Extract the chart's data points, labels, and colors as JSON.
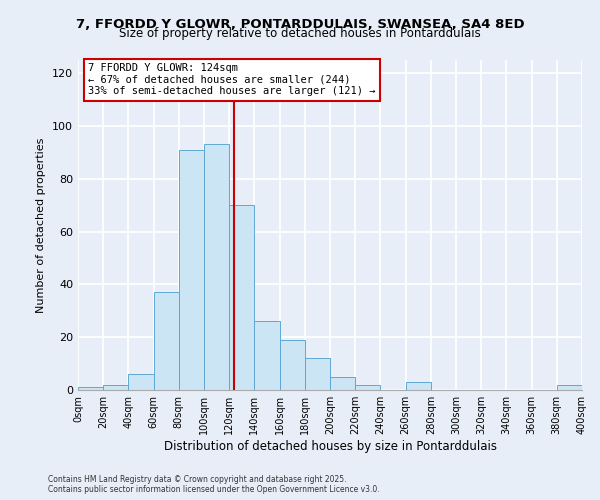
{
  "title_line1": "7, FFORDD Y GLOWR, PONTARDDULAIS, SWANSEA, SA4 8ED",
  "title_line2": "Size of property relative to detached houses in Pontarddulais",
  "xlabel": "Distribution of detached houses by size in Pontarddulais",
  "ylabel": "Number of detached properties",
  "bin_edges": [
    0,
    20,
    40,
    60,
    80,
    100,
    120,
    140,
    160,
    180,
    200,
    220,
    240,
    260,
    280,
    300,
    320,
    340,
    360,
    380,
    400
  ],
  "bin_values": [
    1,
    2,
    6,
    37,
    91,
    93,
    70,
    26,
    19,
    12,
    5,
    2,
    0,
    3,
    0,
    0,
    0,
    0,
    0,
    2
  ],
  "bar_facecolor": "#cce5f5",
  "bar_edgecolor": "#5fa8d3",
  "vline_x": 124,
  "vline_color": "#cc0000",
  "annotation_title": "7 FFORDD Y GLOWR: 124sqm",
  "annotation_line1": "← 67% of detached houses are smaller (244)",
  "annotation_line2": "33% of semi-detached houses are larger (121) →",
  "annotation_box_edgecolor": "#cc0000",
  "annotation_box_facecolor": "#ffffff",
  "ylim": [
    0,
    125
  ],
  "yticks": [
    0,
    20,
    40,
    60,
    80,
    100,
    120
  ],
  "background_color": "#e8eef8",
  "grid_color": "#ffffff",
  "footnote1": "Contains HM Land Registry data © Crown copyright and database right 2025.",
  "footnote2": "Contains public sector information licensed under the Open Government Licence v3.0."
}
